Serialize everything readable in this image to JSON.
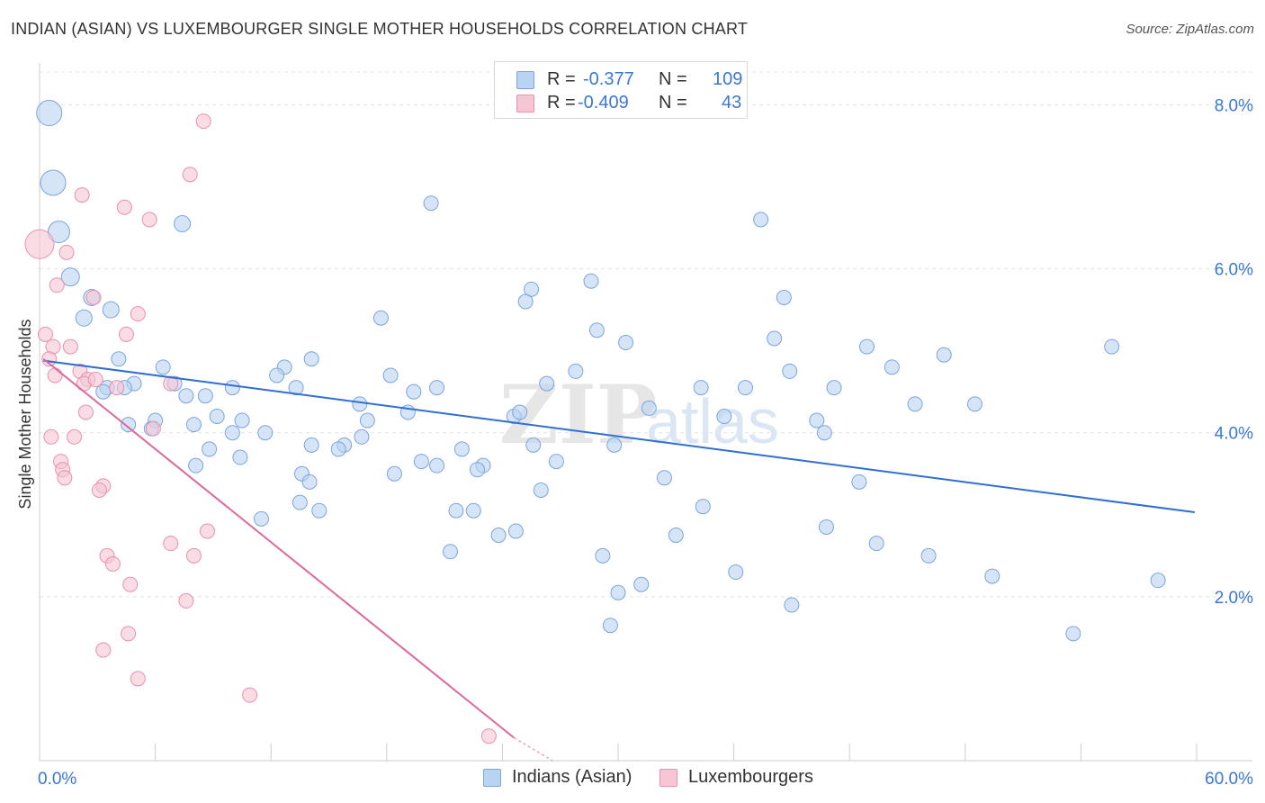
{
  "title": "INDIAN (ASIAN) VS LUXEMBOURGER SINGLE MOTHER HOUSEHOLDS CORRELATION CHART",
  "source": "Source: ZipAtlas.com",
  "watermark": {
    "zip": "ZIP",
    "atlas": "atlas"
  },
  "colors": {
    "blue_fill": "#b9d3f2",
    "blue_stroke": "#7aa5de",
    "blue_line": "#2f6fd1",
    "pink_fill": "#f7c5d4",
    "pink_stroke": "#e890ad",
    "pink_line": "#e0679a",
    "axis_text": "#3a78d4",
    "grid": "#e3e3e3"
  },
  "legend": {
    "rows": [
      {
        "r_label": "R =",
        "r_value": "-0.377",
        "n_label": "N =",
        "n_value": "109"
      },
      {
        "r_label": "R =",
        "r_value": "-0.409",
        "n_label": "N =",
        "n_value": "43"
      }
    ]
  },
  "bottom_legend": [
    "Indians (Asian)",
    "Luxembourgers"
  ],
  "chart_data": {
    "type": "scatter",
    "title": "INDIAN (ASIAN) VS LUXEMBOURGER SINGLE MOTHER HOUSEHOLDS CORRELATION CHART",
    "xlabel": "",
    "ylabel": "Single Mother Households",
    "xlim": [
      0,
      60
    ],
    "ylim": [
      0,
      8.4
    ],
    "x_tick_labels": [
      "0.0%",
      "60.0%"
    ],
    "y_ticks": [
      2,
      4,
      6,
      8
    ],
    "y_tick_labels": [
      "2.0%",
      "4.0%",
      "6.0%",
      "8.0%"
    ],
    "grid": "horizontal dashed",
    "legend_position": "top-center",
    "series": [
      {
        "name": "Indians (Asian)",
        "color": "#b9d3f2",
        "points": [
          [
            0.5,
            7.9,
            14
          ],
          [
            0.7,
            7.05,
            14
          ],
          [
            1.0,
            6.45,
            12
          ],
          [
            1.6,
            5.9,
            10
          ],
          [
            2.7,
            5.65,
            9
          ],
          [
            3.7,
            5.5,
            9
          ],
          [
            2.3,
            5.4,
            9
          ],
          [
            7.4,
            6.55,
            9
          ],
          [
            20.3,
            6.8,
            8
          ],
          [
            37.4,
            6.6,
            8
          ],
          [
            28.6,
            5.85,
            8
          ],
          [
            25.5,
            5.75,
            8
          ],
          [
            25.2,
            5.6,
            8
          ],
          [
            38.6,
            5.65,
            8
          ],
          [
            17.7,
            5.4,
            8
          ],
          [
            28.9,
            5.25,
            8
          ],
          [
            30.4,
            5.1,
            8
          ],
          [
            38.1,
            5.15,
            8
          ],
          [
            42.9,
            5.05,
            8
          ],
          [
            46.9,
            4.95,
            8
          ],
          [
            55.6,
            5.05,
            8
          ],
          [
            4.1,
            4.9,
            8
          ],
          [
            14.1,
            4.9,
            8
          ],
          [
            6.4,
            4.8,
            8
          ],
          [
            12.7,
            4.8,
            8
          ],
          [
            27.8,
            4.75,
            8
          ],
          [
            38.9,
            4.75,
            8
          ],
          [
            44.2,
            4.8,
            8
          ],
          [
            18.2,
            4.7,
            8
          ],
          [
            12.3,
            4.7,
            8
          ],
          [
            4.9,
            4.6,
            8
          ],
          [
            7.0,
            4.6,
            8
          ],
          [
            3.5,
            4.55,
            8
          ],
          [
            10.0,
            4.55,
            8
          ],
          [
            13.3,
            4.55,
            8
          ],
          [
            19.4,
            4.5,
            8
          ],
          [
            20.6,
            4.55,
            8
          ],
          [
            26.3,
            4.6,
            8
          ],
          [
            34.3,
            4.55,
            8
          ],
          [
            36.6,
            4.55,
            8
          ],
          [
            41.2,
            4.55,
            8
          ],
          [
            8.6,
            4.45,
            8
          ],
          [
            7.6,
            4.45,
            8
          ],
          [
            3.3,
            4.5,
            8
          ],
          [
            16.6,
            4.35,
            8
          ],
          [
            31.6,
            4.3,
            8
          ],
          [
            45.4,
            4.35,
            8
          ],
          [
            48.5,
            4.35,
            8
          ],
          [
            9.2,
            4.2,
            8
          ],
          [
            19.1,
            4.25,
            8
          ],
          [
            24.6,
            4.2,
            8
          ],
          [
            24.9,
            4.25,
            8
          ],
          [
            35.5,
            4.2,
            8
          ],
          [
            40.3,
            4.15,
            8
          ],
          [
            4.6,
            4.1,
            8
          ],
          [
            6.0,
            4.15,
            8
          ],
          [
            10.5,
            4.15,
            8
          ],
          [
            8.0,
            4.1,
            8
          ],
          [
            5.8,
            4.05,
            8
          ],
          [
            10.0,
            4.0,
            8
          ],
          [
            11.7,
            4.0,
            8
          ],
          [
            17.0,
            4.15,
            8
          ],
          [
            16.7,
            3.95,
            8
          ],
          [
            40.7,
            4.0,
            8
          ],
          [
            14.1,
            3.85,
            8
          ],
          [
            15.8,
            3.85,
            8
          ],
          [
            25.6,
            3.85,
            8
          ],
          [
            29.8,
            3.85,
            8
          ],
          [
            15.5,
            3.8,
            8
          ],
          [
            21.9,
            3.8,
            8
          ],
          [
            8.8,
            3.8,
            8
          ],
          [
            10.4,
            3.7,
            8
          ],
          [
            8.1,
            3.6,
            8
          ],
          [
            19.8,
            3.65,
            8
          ],
          [
            20.6,
            3.6,
            8
          ],
          [
            23.0,
            3.6,
            8
          ],
          [
            22.7,
            3.55,
            8
          ],
          [
            26.8,
            3.65,
            8
          ],
          [
            18.4,
            3.5,
            8
          ],
          [
            13.6,
            3.5,
            8
          ],
          [
            14.0,
            3.4,
            8
          ],
          [
            32.4,
            3.45,
            8
          ],
          [
            42.5,
            3.4,
            8
          ],
          [
            26.0,
            3.3,
            8
          ],
          [
            13.5,
            3.15,
            8
          ],
          [
            14.5,
            3.05,
            8
          ],
          [
            21.6,
            3.05,
            8
          ],
          [
            22.5,
            3.05,
            8
          ],
          [
            34.4,
            3.1,
            8
          ],
          [
            11.5,
            2.95,
            8
          ],
          [
            24.7,
            2.8,
            8
          ],
          [
            23.8,
            2.75,
            8
          ],
          [
            33.0,
            2.75,
            8
          ],
          [
            40.8,
            2.85,
            8
          ],
          [
            43.4,
            2.65,
            8
          ],
          [
            21.3,
            2.55,
            8
          ],
          [
            29.2,
            2.5,
            8
          ],
          [
            46.1,
            2.5,
            8
          ],
          [
            36.1,
            2.3,
            8
          ],
          [
            49.4,
            2.25,
            8
          ],
          [
            58.0,
            2.2,
            8
          ],
          [
            31.2,
            2.15,
            8
          ],
          [
            30.0,
            2.05,
            8
          ],
          [
            39.0,
            1.9,
            8
          ],
          [
            29.6,
            1.65,
            8
          ],
          [
            53.6,
            1.55,
            8
          ],
          [
            4.4,
            4.55,
            8
          ]
        ]
      },
      {
        "name": "Luxembourgers",
        "color": "#f7c5d4",
        "points": [
          [
            0.0,
            6.3,
            16
          ],
          [
            8.5,
            7.8,
            8
          ],
          [
            7.8,
            7.15,
            8
          ],
          [
            2.2,
            6.9,
            8
          ],
          [
            4.4,
            6.75,
            8
          ],
          [
            5.7,
            6.6,
            8
          ],
          [
            1.4,
            6.2,
            8
          ],
          [
            0.9,
            5.8,
            8
          ],
          [
            2.8,
            5.65,
            8
          ],
          [
            5.1,
            5.45,
            8
          ],
          [
            0.3,
            5.2,
            8
          ],
          [
            4.5,
            5.2,
            8
          ],
          [
            0.7,
            5.05,
            8
          ],
          [
            1.6,
            5.05,
            8
          ],
          [
            0.5,
            4.9,
            8
          ],
          [
            2.1,
            4.75,
            8
          ],
          [
            0.8,
            4.7,
            8
          ],
          [
            2.5,
            4.65,
            8
          ],
          [
            2.3,
            4.6,
            8
          ],
          [
            6.8,
            4.6,
            8
          ],
          [
            4.0,
            4.55,
            8
          ],
          [
            2.4,
            4.25,
            8
          ],
          [
            5.9,
            4.05,
            8
          ],
          [
            0.6,
            3.95,
            8
          ],
          [
            1.8,
            3.95,
            8
          ],
          [
            1.1,
            3.65,
            8
          ],
          [
            1.2,
            3.55,
            8
          ],
          [
            1.3,
            3.45,
            8
          ],
          [
            3.3,
            3.35,
            8
          ],
          [
            3.1,
            3.3,
            8
          ],
          [
            8.7,
            2.8,
            8
          ],
          [
            6.8,
            2.65,
            8
          ],
          [
            3.5,
            2.5,
            8
          ],
          [
            8.0,
            2.5,
            8
          ],
          [
            3.8,
            2.4,
            8
          ],
          [
            4.7,
            2.15,
            8
          ],
          [
            7.6,
            1.95,
            8
          ],
          [
            4.6,
            1.55,
            8
          ],
          [
            3.3,
            1.35,
            8
          ],
          [
            5.1,
            1.0,
            8
          ],
          [
            10.9,
            0.8,
            8
          ],
          [
            23.3,
            0.3,
            8
          ],
          [
            2.9,
            4.65,
            8
          ]
        ]
      }
    ],
    "trendlines": [
      {
        "series": "Indians (Asian)",
        "x": [
          0.2,
          59.9
        ],
        "y": [
          4.88,
          3.03
        ]
      },
      {
        "series": "Luxembourgers",
        "x": [
          0.2,
          24.6
        ],
        "y": [
          4.9,
          0.28
        ],
        "dashed_extension_to": [
          26.6,
          0.0
        ]
      }
    ]
  }
}
